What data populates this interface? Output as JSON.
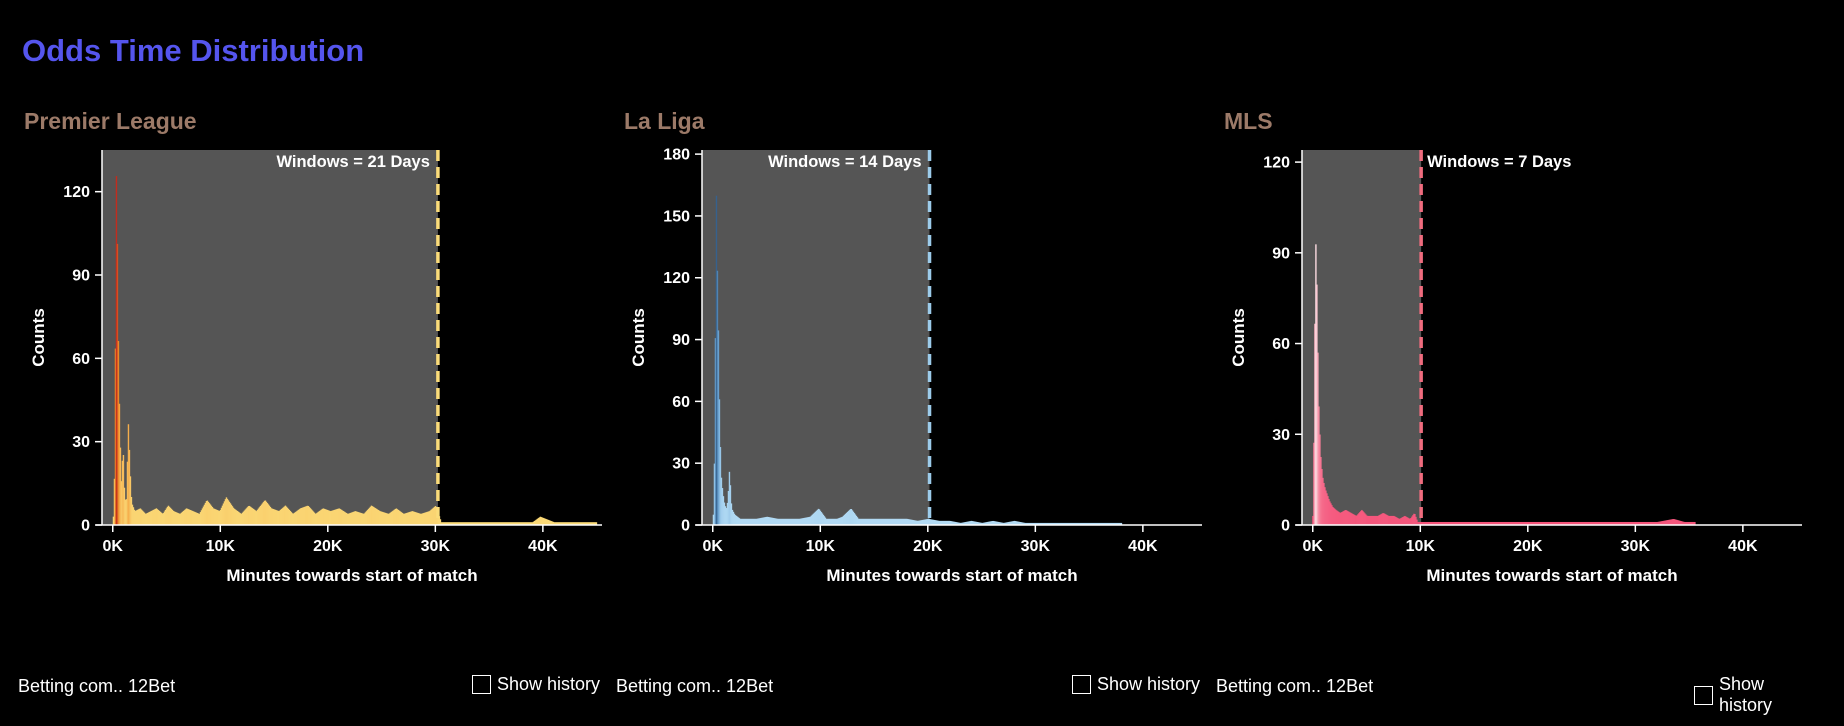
{
  "page_title": "Odds Time Distribution",
  "footer": {
    "company_text": "Betting com.. 12Bet",
    "history_label": "Show history"
  },
  "chart_data": [
    {
      "type": "bar",
      "title": "Premier League",
      "xlabel": "Minutes towards start of match",
      "ylabel": "Counts",
      "window_label": "Windows = 21 Days",
      "window_minutes": 30240,
      "xlim": [
        -1000,
        45500
      ],
      "ylim": [
        0,
        135
      ],
      "xticks": [
        0,
        10000,
        20000,
        30000,
        40000
      ],
      "xtick_labels": [
        "0K",
        "10K",
        "20K",
        "30K",
        "40K"
      ],
      "yticks": [
        0,
        30,
        60,
        90,
        120
      ],
      "yticks_labels": [
        "0",
        "30",
        "60",
        "90",
        "120"
      ],
      "colors": {
        "low": "#fbdc7a",
        "mid": "#f08a28",
        "high": "#c0281e",
        "window": "#fbdc7a",
        "shade": "#555555"
      },
      "peaks": [
        [
          0,
          3
        ],
        [
          150,
          25
        ],
        [
          250,
          132
        ],
        [
          350,
          110
        ],
        [
          450,
          70
        ],
        [
          550,
          45
        ],
        [
          650,
          28
        ],
        [
          750,
          15
        ],
        [
          900,
          29
        ],
        [
          1050,
          10
        ],
        [
          1200,
          8
        ],
        [
          1400,
          37
        ],
        [
          1550,
          20
        ],
        [
          1700,
          8
        ],
        [
          2000,
          5
        ],
        [
          2500,
          6
        ],
        [
          3000,
          4
        ],
        [
          3500,
          5
        ],
        [
          4000,
          6
        ],
        [
          4600,
          4
        ],
        [
          5100,
          7
        ],
        [
          5600,
          5
        ],
        [
          6200,
          4
        ],
        [
          6800,
          6
        ],
        [
          7400,
          5
        ],
        [
          8000,
          4
        ],
        [
          8700,
          9
        ],
        [
          9300,
          6
        ],
        [
          9900,
          5
        ],
        [
          10500,
          10
        ],
        [
          11200,
          6
        ],
        [
          11900,
          4
        ],
        [
          12600,
          7
        ],
        [
          13300,
          5
        ],
        [
          14100,
          9
        ],
        [
          14700,
          6
        ],
        [
          15400,
          5
        ],
        [
          16000,
          7
        ],
        [
          16700,
          4
        ],
        [
          17400,
          6
        ],
        [
          18100,
          7
        ],
        [
          18800,
          4
        ],
        [
          19500,
          6
        ],
        [
          20200,
          5
        ],
        [
          21000,
          6
        ],
        [
          21800,
          4
        ],
        [
          22500,
          5
        ],
        [
          23300,
          4
        ],
        [
          24000,
          7
        ],
        [
          24800,
          5
        ],
        [
          25600,
          4
        ],
        [
          26300,
          6
        ],
        [
          27000,
          4
        ],
        [
          27800,
          5
        ],
        [
          28600,
          4
        ],
        [
          29400,
          5
        ],
        [
          30000,
          7
        ],
        [
          30500,
          1
        ],
        [
          31500,
          1
        ],
        [
          33000,
          1
        ],
        [
          35000,
          1
        ],
        [
          37000,
          1
        ],
        [
          39000,
          1
        ],
        [
          39700,
          3
        ],
        [
          41000,
          1
        ],
        [
          43000,
          1
        ],
        [
          45000,
          1
        ]
      ]
    },
    {
      "type": "bar",
      "title": "La Liga",
      "xlabel": "Minutes towards start of match",
      "ylabel": "Counts",
      "window_label": "Windows = 14 Days",
      "window_minutes": 20160,
      "xlim": [
        -1000,
        45500
      ],
      "ylim": [
        0,
        182
      ],
      "xticks": [
        0,
        10000,
        20000,
        30000,
        40000
      ],
      "xtick_labels": [
        "0K",
        "10K",
        "20K",
        "30K",
        "40K"
      ],
      "yticks": [
        0,
        30,
        60,
        90,
        120,
        150,
        180
      ],
      "yticks_labels": [
        "0",
        "30",
        "60",
        "90",
        "120",
        "150",
        "180"
      ],
      "colors": {
        "low": "#b4dcf5",
        "mid": "#6fa8d6",
        "high": "#2c5480",
        "window": "#9ccbea",
        "shade": "#555555"
      },
      "peaks": [
        [
          0,
          5
        ],
        [
          150,
          45
        ],
        [
          250,
          172
        ],
        [
          350,
          130
        ],
        [
          450,
          100
        ],
        [
          550,
          63
        ],
        [
          650,
          38
        ],
        [
          750,
          22
        ],
        [
          900,
          15
        ],
        [
          1050,
          10
        ],
        [
          1200,
          8
        ],
        [
          1350,
          12
        ],
        [
          1500,
          27
        ],
        [
          1700,
          8
        ],
        [
          2000,
          5
        ],
        [
          2500,
          3
        ],
        [
          3000,
          3
        ],
        [
          4000,
          3
        ],
        [
          5000,
          4
        ],
        [
          6000,
          3
        ],
        [
          7000,
          3
        ],
        [
          8000,
          3
        ],
        [
          9000,
          4
        ],
        [
          9800,
          8
        ],
        [
          10500,
          3
        ],
        [
          11500,
          3
        ],
        [
          12000,
          4
        ],
        [
          12800,
          8
        ],
        [
          13500,
          3
        ],
        [
          15000,
          3
        ],
        [
          16500,
          3
        ],
        [
          18000,
          3
        ],
        [
          19000,
          2
        ],
        [
          20000,
          3
        ],
        [
          21000,
          2
        ],
        [
          22000,
          2
        ],
        [
          23000,
          1
        ],
        [
          24000,
          2
        ],
        [
          25000,
          1
        ],
        [
          26000,
          2
        ],
        [
          27000,
          1
        ],
        [
          28000,
          2
        ],
        [
          29000,
          1
        ],
        [
          30000,
          1
        ],
        [
          31000,
          1
        ],
        [
          32000,
          1
        ],
        [
          33000,
          1
        ],
        [
          34000,
          1
        ],
        [
          35000,
          1
        ],
        [
          36000,
          1
        ],
        [
          37000,
          1
        ],
        [
          38000,
          1
        ]
      ]
    },
    {
      "type": "bar",
      "title": "MLS",
      "xlabel": "Minutes towards start of match",
      "ylabel": "Counts",
      "window_label": "Windows = 7 Days",
      "window_minutes": 10080,
      "xlim": [
        -1000,
        45500
      ],
      "ylim": [
        0,
        124
      ],
      "xticks": [
        0,
        10000,
        20000,
        30000,
        40000
      ],
      "xtick_labels": [
        "0K",
        "10K",
        "20K",
        "30K",
        "40K"
      ],
      "yticks": [
        0,
        30,
        60,
        90,
        120
      ],
      "yticks_labels": [
        "0",
        "30",
        "60",
        "90",
        "120"
      ],
      "colors": {
        "low": "#f5537a",
        "mid": "#f7a8b8",
        "high": "#ffffff",
        "window": "#f06c7e",
        "shade": "#555555"
      },
      "peaks": [
        [
          -50,
          3
        ],
        [
          0,
          10
        ],
        [
          100,
          50
        ],
        [
          200,
          96
        ],
        [
          300,
          85
        ],
        [
          400,
          60
        ],
        [
          500,
          40
        ],
        [
          600,
          30
        ],
        [
          700,
          22
        ],
        [
          800,
          18
        ],
        [
          900,
          15
        ],
        [
          1100,
          12
        ],
        [
          1300,
          10
        ],
        [
          1500,
          8
        ],
        [
          1800,
          6
        ],
        [
          2100,
          5
        ],
        [
          2500,
          4
        ],
        [
          3000,
          5
        ],
        [
          3500,
          4
        ],
        [
          4000,
          3
        ],
        [
          4500,
          5
        ],
        [
          5000,
          3
        ],
        [
          5500,
          3
        ],
        [
          6000,
          3
        ],
        [
          6500,
          4
        ],
        [
          7000,
          3
        ],
        [
          7500,
          3
        ],
        [
          8000,
          2
        ],
        [
          8500,
          3
        ],
        [
          9000,
          2
        ],
        [
          9400,
          4
        ],
        [
          9700,
          1
        ],
        [
          10500,
          1
        ],
        [
          12000,
          1
        ],
        [
          14000,
          1
        ],
        [
          16000,
          1
        ],
        [
          18000,
          1
        ],
        [
          20000,
          1
        ],
        [
          22000,
          1
        ],
        [
          24000,
          1
        ],
        [
          26000,
          1
        ],
        [
          28000,
          1
        ],
        [
          30000,
          1
        ],
        [
          32000,
          1
        ],
        [
          33500,
          2
        ],
        [
          34500,
          1
        ],
        [
          35500,
          1
        ]
      ]
    }
  ]
}
